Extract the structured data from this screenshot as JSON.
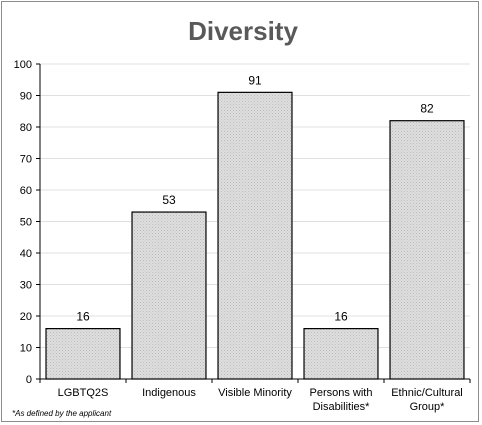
{
  "chart_data": {
    "type": "bar",
    "title": "Diversity",
    "categories": [
      "LGBTQ2S",
      "Indigenous",
      "Visible Minority",
      "Persons with Disabilities*",
      "Ethnic/Cultural Group*"
    ],
    "category_lines": [
      [
        "LGBTQ2S"
      ],
      [
        "Indigenous"
      ],
      [
        "Visible Minority"
      ],
      [
        "Persons with",
        "Disabilities*"
      ],
      [
        "Ethnic/Cultural",
        "Group*"
      ]
    ],
    "values": [
      16,
      53,
      91,
      16,
      82
    ],
    "ylim": [
      0,
      100
    ],
    "yticks": [
      0,
      10,
      20,
      30,
      40,
      50,
      60,
      70,
      80,
      90,
      100
    ],
    "grid": true,
    "legend": "none",
    "bar_color": "#d9d9d9",
    "footnote": "*As defined by the applicant"
  }
}
